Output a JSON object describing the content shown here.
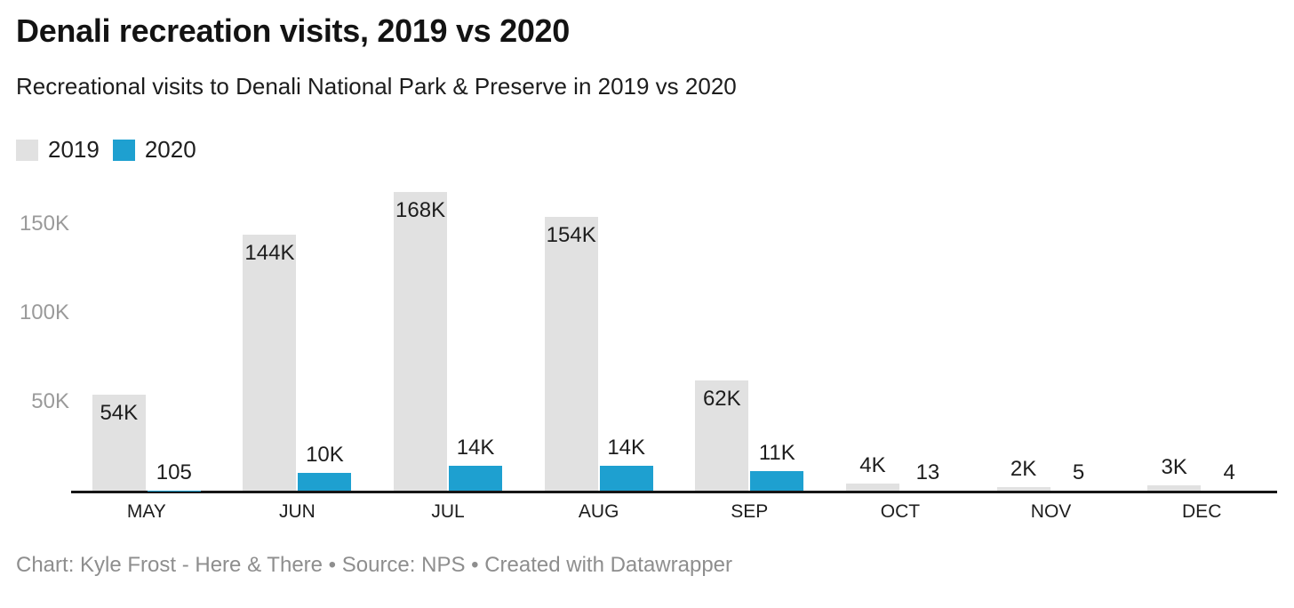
{
  "footer": {
    "byline": "Chart: Kyle Frost - Here & There • Source: NPS • Created with Datawrapper"
  },
  "colors": {
    "series_2019": "#e1e1e1",
    "series_2020": "#1ea0d0",
    "axis_line": "#161616",
    "tick_label": "#9a9a9a",
    "text_dark": "#1d1d1d",
    "footer_text": "#8e8e8e",
    "background": "#ffffff"
  },
  "chart_data": {
    "type": "bar",
    "title": "Denali recreation visits, 2019 vs 2020",
    "subtitle": "Recreational visits to Denali National Park & Preserve in 2019 vs 2020",
    "categories": [
      "MAY",
      "JUN",
      "JUL",
      "AUG",
      "SEP",
      "OCT",
      "NOV",
      "DEC"
    ],
    "series": [
      {
        "name": "2019",
        "color": "#e1e1e1",
        "values": [
          54000,
          144000,
          168000,
          154000,
          62000,
          4000,
          2000,
          3000
        ],
        "labels": [
          "54K",
          "144K",
          "168K",
          "154K",
          "62K",
          "4K",
          "2K",
          "3K"
        ]
      },
      {
        "name": "2020",
        "color": "#1ea0d0",
        "values": [
          105,
          10000,
          14000,
          14000,
          11000,
          13,
          5,
          4
        ],
        "labels": [
          "105",
          "10K",
          "14K",
          "14K",
          "11K",
          "13",
          "5",
          "4"
        ]
      }
    ],
    "y_axis": {
      "range": [
        0,
        176000
      ],
      "gridlines": false,
      "ticks": [
        {
          "value": 50000,
          "label": "50K"
        },
        {
          "value": 100000,
          "label": "100K"
        },
        {
          "value": 150000,
          "label": "150K"
        }
      ]
    },
    "x_axis": {
      "label": ""
    },
    "legend_position": "top-left",
    "value_labels_shown": true
  }
}
